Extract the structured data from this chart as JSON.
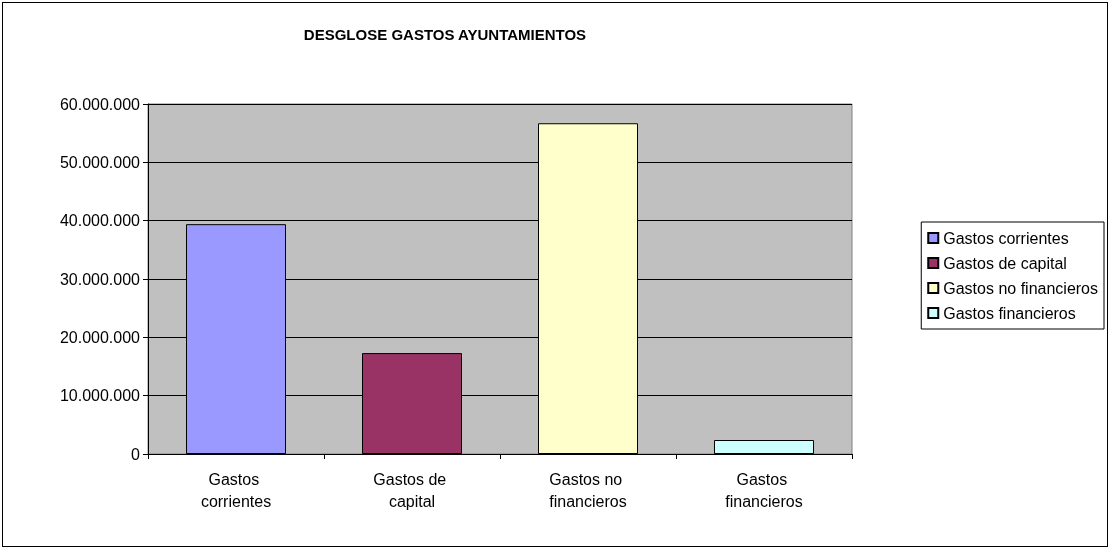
{
  "chart_data": {
    "type": "bar",
    "title": "DESGLOSE GASTOS AYUNTAMIENTOS",
    "categories": [
      "Gastos corrientes",
      "Gastos de capital",
      "Gastos no financieros",
      "Gastos financieros"
    ],
    "series": [
      {
        "name": "Gastos corrientes",
        "color": "#9999ff",
        "values": [
          39400000,
          null,
          null,
          null
        ]
      },
      {
        "name": "Gastos de capital",
        "color": "#993366",
        "values": [
          null,
          17300000,
          null,
          null
        ]
      },
      {
        "name": "Gastos no financieros",
        "color": "#ffffcc",
        "values": [
          null,
          null,
          56700000,
          null
        ]
      },
      {
        "name": "Gastos financieros",
        "color": "#ccffff",
        "values": [
          null,
          null,
          null,
          2400000
        ]
      }
    ],
    "ylim": [
      0,
      60000000
    ],
    "yticks": [
      0,
      {
        "value": 10000000,
        "label": "10.000.000"
      },
      {
        "value": 20000000,
        "label": "20.000.000"
      },
      {
        "value": 30000000,
        "label": "30.000.000"
      },
      {
        "value": 40000000,
        "label": "40.000.000"
      },
      {
        "value": 50000000,
        "label": "50.000.000"
      },
      {
        "value": 60000000,
        "label": "60.000.000"
      }
    ],
    "grid": "y",
    "legend": "right"
  }
}
